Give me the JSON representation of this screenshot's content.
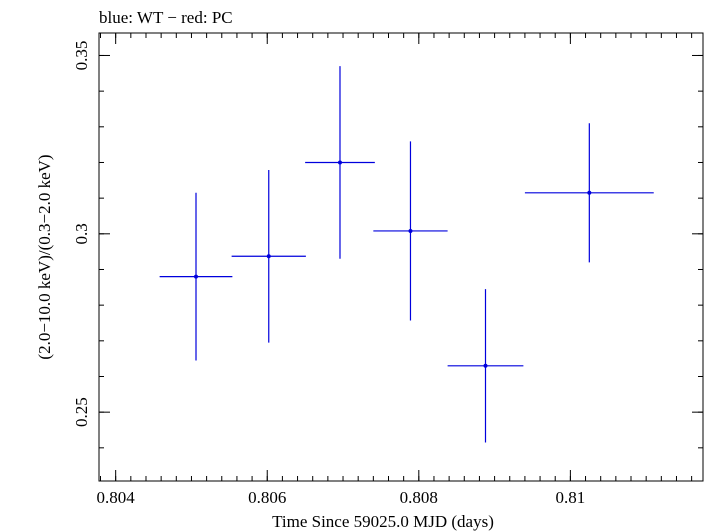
{
  "chart_data": {
    "type": "scatter",
    "title": "blue: WT − red: PC",
    "xlabel": "Time Since 59025.0 MJD (days)",
    "ylabel": "(2.0−10.0 keV)/(0.3−2.0 keV)",
    "xlim": [
      0.80378,
      0.81175
    ],
    "ylim": [
      0.2307,
      0.3563
    ],
    "x_ticks": [
      {
        "value": 0.804,
        "label": "0.804"
      },
      {
        "value": 0.806,
        "label": "0.806"
      },
      {
        "value": 0.808,
        "label": "0.808"
      },
      {
        "value": 0.81,
        "label": "0.81"
      }
    ],
    "x_minor_step": 0.0002,
    "y_ticks": [
      {
        "value": 0.25,
        "label": "0.25"
      },
      {
        "value": 0.3,
        "label": "0.3"
      },
      {
        "value": 0.35,
        "label": "0.35"
      }
    ],
    "y_minor_step": 0.01,
    "grid": false,
    "series": [
      {
        "color": "#0000dd",
        "points": [
          {
            "x": 0.80506,
            "y": 0.288,
            "xerr": 0.00048,
            "yerr": 0.0235
          },
          {
            "x": 0.80602,
            "y": 0.2937,
            "xerr": 0.00049,
            "yerr": 0.0242
          },
          {
            "x": 0.80696,
            "y": 0.32,
            "xerr": 0.00046,
            "yerr": 0.027
          },
          {
            "x": 0.80789,
            "y": 0.3008,
            "xerr": 0.00049,
            "yerr": 0.0251
          },
          {
            "x": 0.80888,
            "y": 0.263,
            "xerr": 0.0005,
            "yerr": 0.0215
          },
          {
            "x": 0.81025,
            "y": 0.3115,
            "xerr": 0.00085,
            "yerr": 0.0195
          }
        ]
      }
    ]
  }
}
